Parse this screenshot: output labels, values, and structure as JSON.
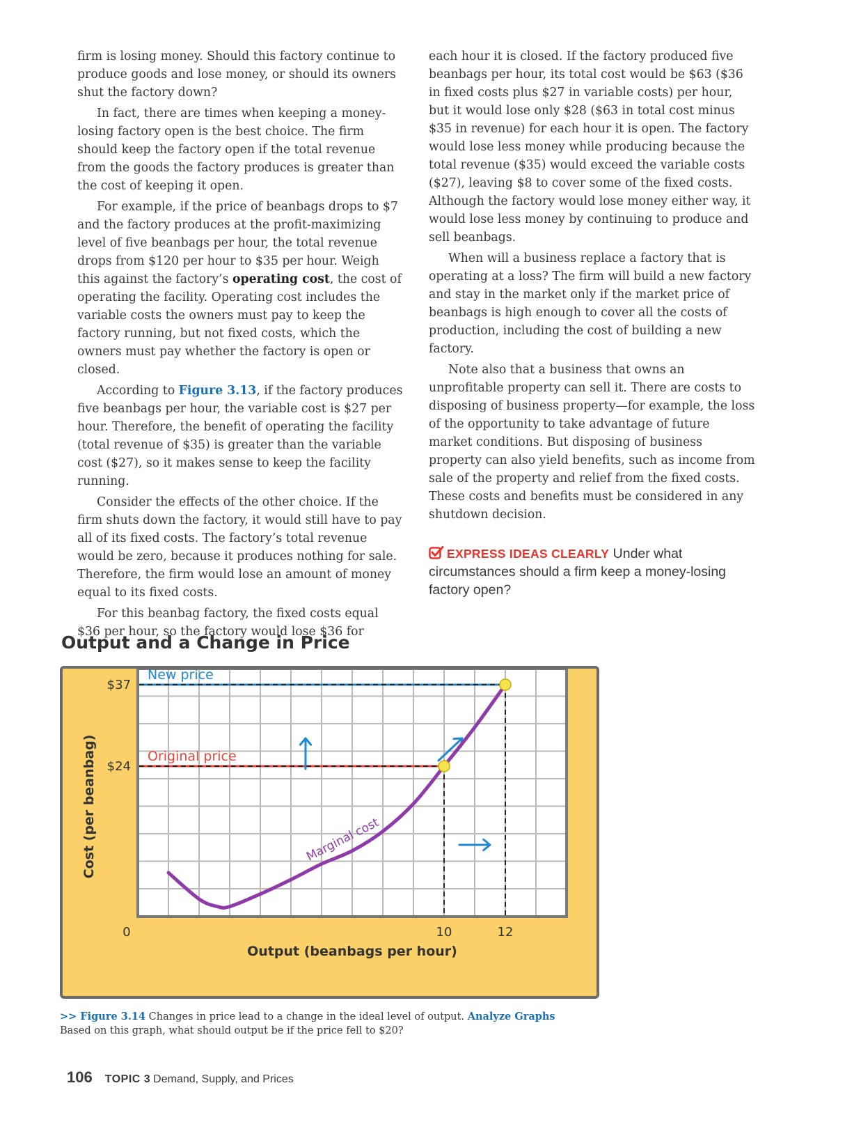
{
  "body_left": {
    "p1": "firm is losing money. Should this factory continue to produce goods and lose money, or should its owners shut the factory down?",
    "p2": "In fact, there are times when keeping a money-losing factory open is the best choice. The firm should keep the factory open if the total revenue from the goods the factory produces is greater than the cost of keeping it open.",
    "p3_a": "For example, if the price of beanbags drops to $7 and the factory produces at the profit-maximizing level of five beanbags per hour, the total revenue drops from $120 per hour to $35 per hour. Weigh this against the factory’s ",
    "p3_term": "operating cost",
    "p3_b": ", the cost of operating the facility. Operating cost includes the variable costs the owners must pay to keep the factory running, but not fixed costs, which the owners must pay whether the factory is open or closed.",
    "p4_a": "According to ",
    "p4_ref": "Figure 3.13",
    "p4_b": ", if the factory produces five beanbags per hour, the variable cost is $27 per hour. Therefore, the benefit of operating the facility (total revenue of $35) is greater than the variable cost ($27), so it makes sense to keep the facility running.",
    "p5": "Consider the effects of the other choice. If the firm shuts down the factory, it would still have to pay all of its fixed costs. The factory’s total revenue would be zero, because it produces nothing for sale. Therefore, the firm would lose an amount of money equal to its fixed costs.",
    "p6": "For this beanbag factory, the fixed costs equal $36 per hour, so the factory would lose $36 for"
  },
  "body_right": {
    "p1": "each hour it is closed. If the factory produced five beanbags per hour, its total cost would be $63 ($36 in fixed costs plus $27 in variable costs) per hour, but it would lose only $28 ($63 in total cost minus $35 in revenue) for each hour it is open. The factory would lose less money while producing because the total revenue ($35) would exceed the variable costs ($27), leaving $8 to cover some of the fixed costs. Although the factory would lose money either way, it would lose less money by continuing to produce and sell beanbags.",
    "p2": "When will a business replace a factory that is operating at a loss? The firm will build a new factory and stay in the market only if the market price of beanbags is high enough to cover all the costs of production, including the cost of building a new factory.",
    "p3": "Note also that a business that owns an unprofitable property can sell it. There are costs to disposing of business property—for example, the loss of the opportunity to take advantage of future market conditions. But disposing of business property can also yield benefits, such as income from sale of the property and relief from the fixed costs. These costs and benefits must be considered in any shutdown decision.",
    "express_tag": "EXPRESS IDEAS CLEARLY",
    "express_text": " Under what circumstances should a firm keep a money-losing factory open?"
  },
  "figure": {
    "title": "Output and a Change in Price",
    "caption_prefix": ">> ",
    "caption_ref": "Figure 3.14",
    "caption_text": " Changes in price lead to a change in the ideal level of output. ",
    "caption_prompt": "Analyze Graphs",
    "caption_question": "  Based on this graph, what should output be if the price fell to $20?"
  },
  "chart_data": {
    "type": "line",
    "title": "Output and a Change in Price",
    "xlabel": "Output (beanbags per hour)",
    "ylabel": "Cost (per beanbag)",
    "x_ticks": [
      "0",
      "10",
      "12"
    ],
    "y_ticks": [
      "$24",
      "$37"
    ],
    "xlim": [
      0,
      14
    ],
    "ylim": [
      0,
      40
    ],
    "grid": true,
    "series": [
      {
        "name": "Marginal cost",
        "x": [
          1.0,
          2.0,
          2.6,
          3.0,
          4.0,
          5.0,
          6.0,
          7.0,
          8.0,
          9.0,
          10.0,
          11.0,
          12.0
        ],
        "y": [
          7.0,
          2.8,
          1.6,
          1.6,
          3.6,
          5.9,
          8.4,
          10.5,
          13.6,
          18.0,
          24.0,
          30.2,
          37.0
        ]
      }
    ],
    "reference_lines": [
      {
        "name": "New price",
        "y": 37,
        "x_end": 12,
        "color": "#1f8ad1"
      },
      {
        "name": "Original price",
        "y": 24,
        "x_end": 10,
        "color": "#e9473c"
      }
    ],
    "points": [
      {
        "x": 10,
        "y": 24,
        "color": "#f5e44f"
      },
      {
        "x": 12,
        "y": 37,
        "color": "#f5e44f"
      }
    ],
    "curve_color": "#8e3aa8",
    "arrow_color": "#1f8ad1",
    "panel_color": "#fbd068"
  },
  "footer": {
    "page_number": "106",
    "topic_label": "TOPIC 3",
    "topic_title": "Demand, Supply, and Prices"
  }
}
